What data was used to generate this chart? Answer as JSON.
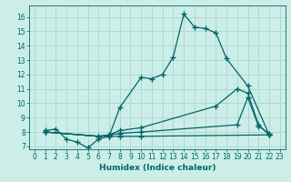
{
  "xlabel": "Humidex (Indice chaleur)",
  "bg_color": "#cceee8",
  "line_color": "#006666",
  "grid_color": "#b0d8d0",
  "xlim": [
    -0.5,
    23.5
  ],
  "ylim": [
    6.8,
    16.8
  ],
  "yticks": [
    7,
    8,
    9,
    10,
    11,
    12,
    13,
    14,
    15,
    16
  ],
  "xticks": [
    0,
    1,
    2,
    3,
    4,
    5,
    6,
    7,
    8,
    9,
    10,
    11,
    12,
    13,
    14,
    15,
    16,
    17,
    18,
    19,
    20,
    21,
    22,
    23
  ],
  "line1_x": [
    1,
    2,
    3,
    4,
    5,
    6,
    7,
    8,
    10,
    11,
    12,
    13,
    14,
    15,
    16,
    17,
    18,
    20,
    22
  ],
  "line1_y": [
    8.1,
    8.2,
    7.5,
    7.3,
    6.9,
    7.5,
    7.7,
    9.7,
    11.8,
    11.7,
    12.0,
    13.2,
    16.2,
    15.3,
    15.2,
    14.9,
    13.1,
    11.2,
    7.8
  ],
  "line2_x": [
    1,
    6,
    7,
    8,
    10,
    17,
    19,
    20,
    21,
    22
  ],
  "line2_y": [
    8.0,
    7.7,
    7.8,
    8.1,
    8.3,
    9.8,
    11.0,
    10.7,
    8.5,
    7.8
  ],
  "line3_x": [
    1,
    6,
    7,
    8,
    10,
    19,
    20,
    21,
    22
  ],
  "line3_y": [
    8.0,
    7.7,
    7.8,
    7.9,
    8.0,
    8.5,
    10.4,
    8.4,
    7.9
  ],
  "line4_x": [
    1,
    6,
    7,
    8,
    10,
    22
  ],
  "line4_y": [
    8.0,
    7.7,
    7.7,
    7.7,
    7.7,
    7.8
  ]
}
